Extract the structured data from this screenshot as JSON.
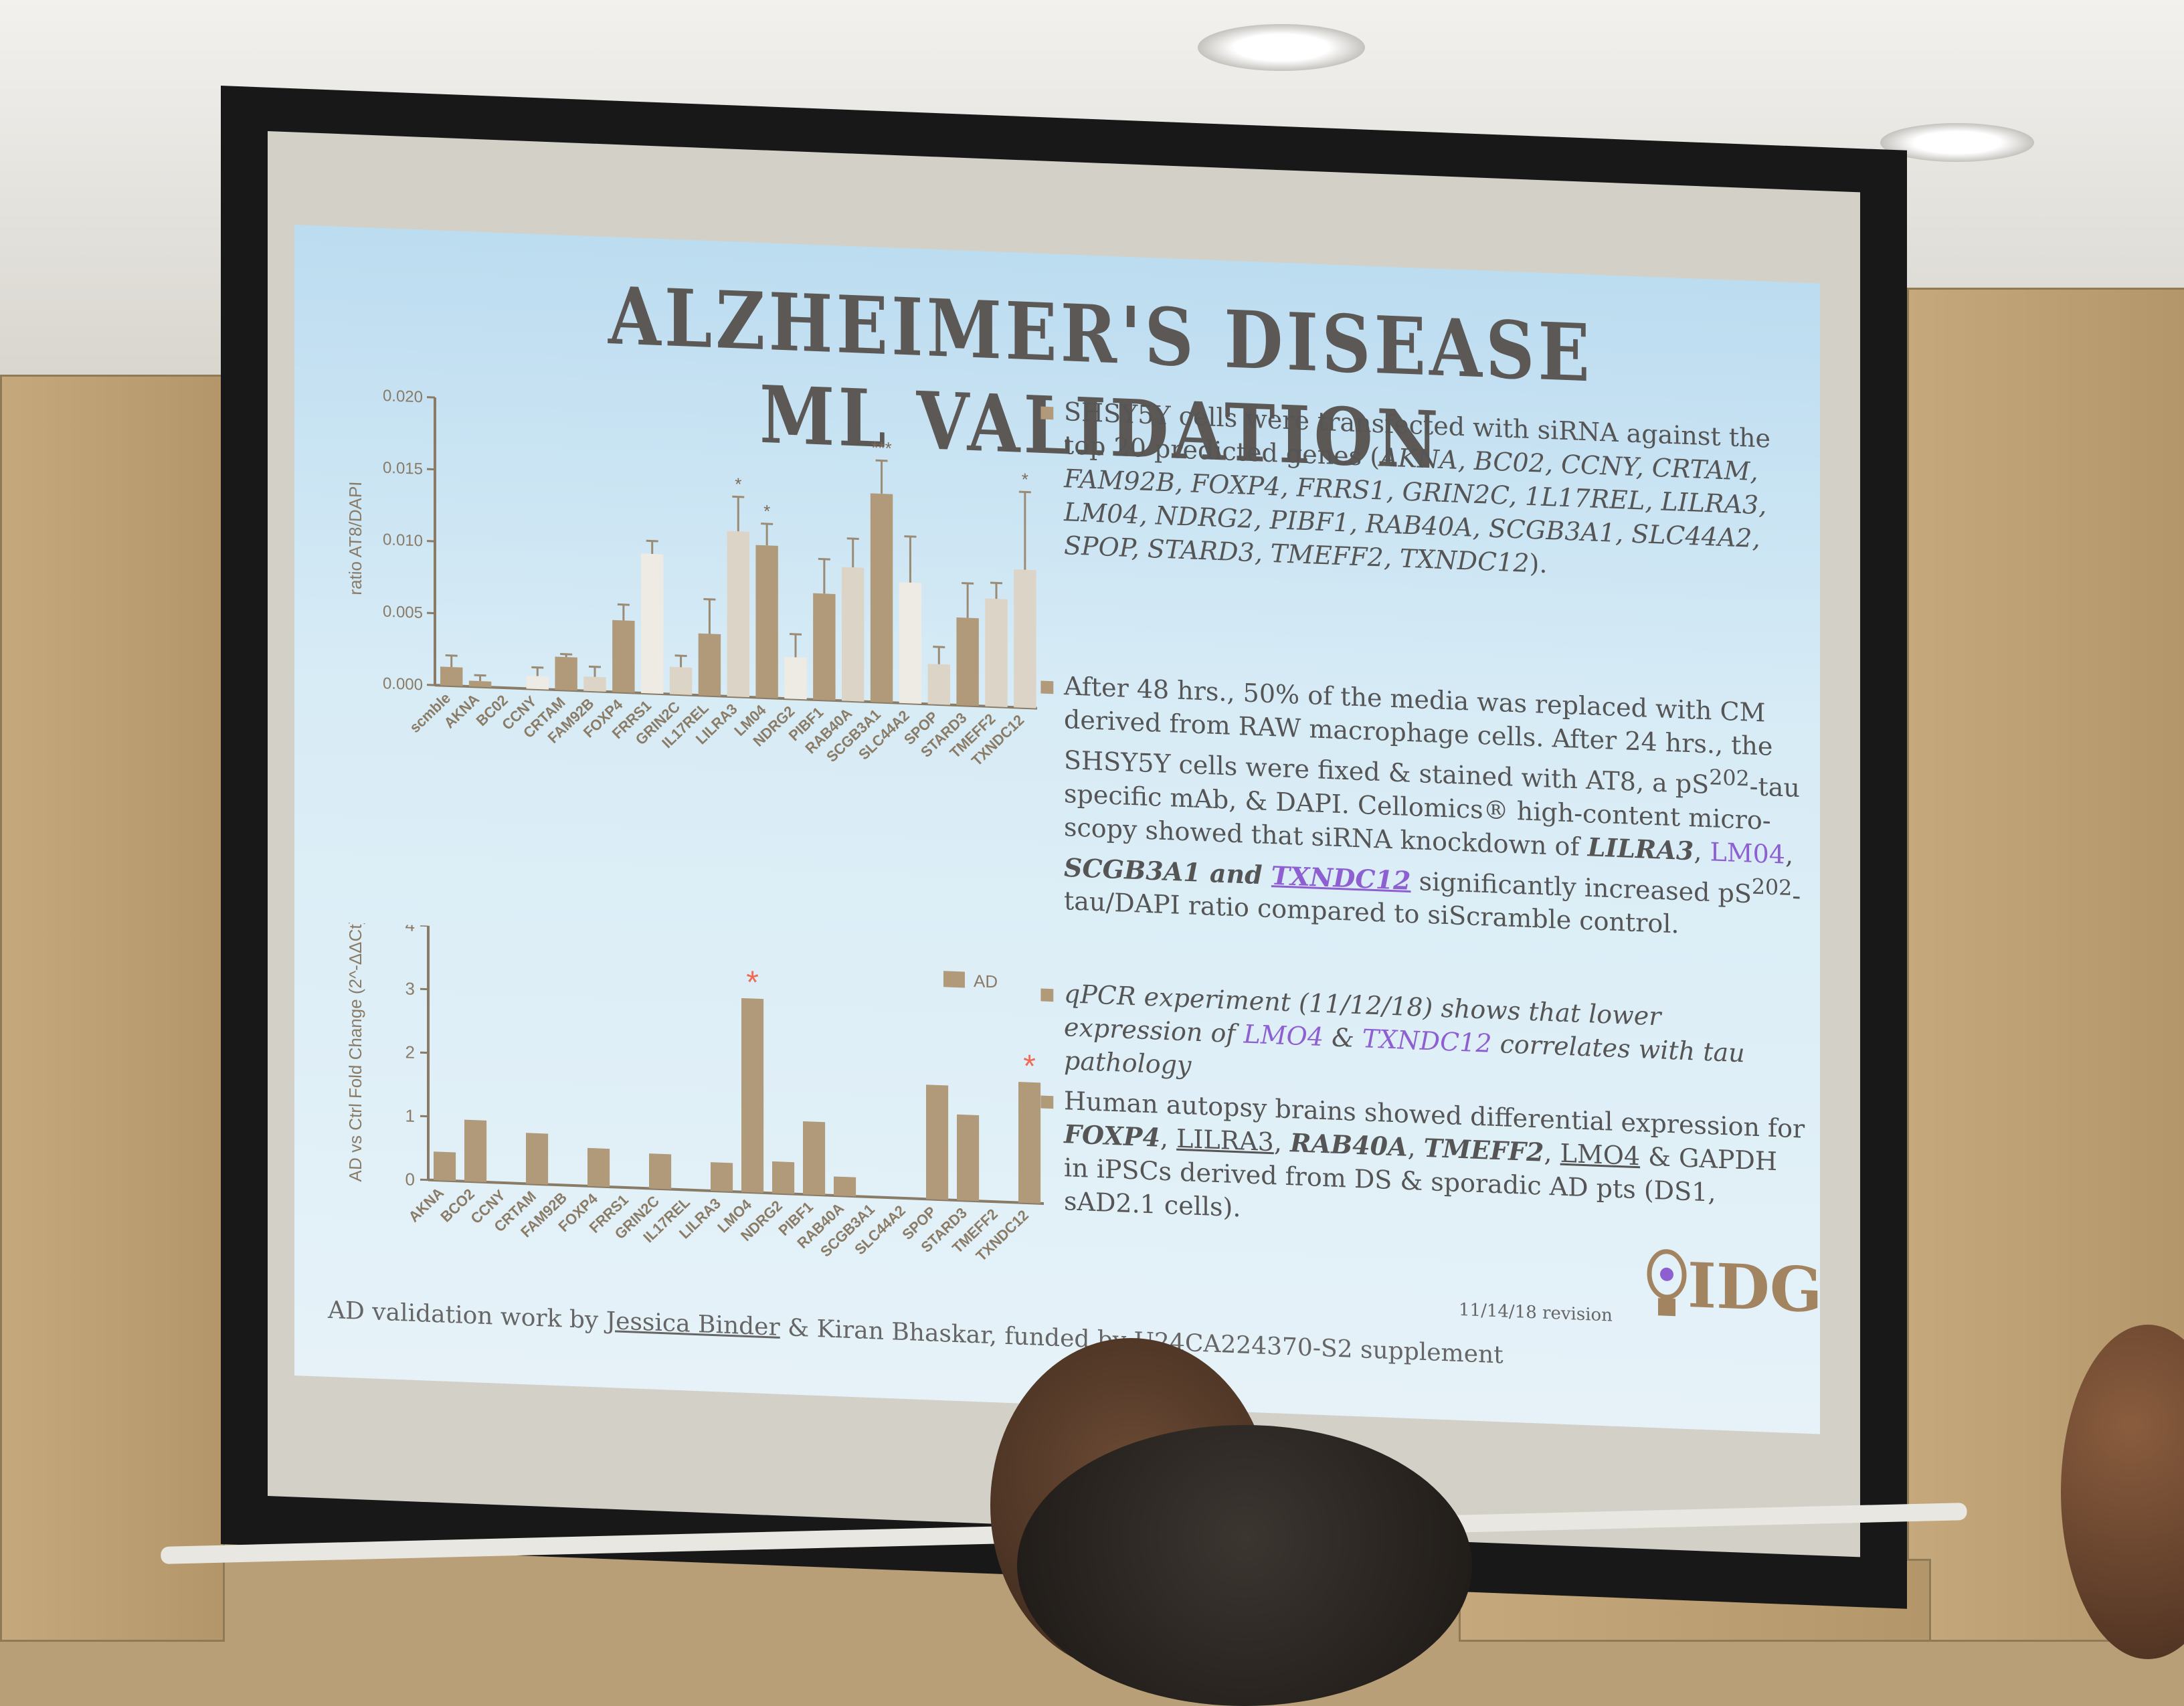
{
  "slide": {
    "title": "ALZHEIMER'S DISEASE ML VALIDATION",
    "bullets": [
      {
        "marker": "▪",
        "parts": [
          {
            "t": "SHSY5Y cells were transfected with siRNA against the top 20 predicted genes ("
          },
          {
            "t": "AKNA, BC02, CCNY, CRTAM, FAM92B, FOXP4, FRRS1, GRIN2C, 1L17REL, LILRA3, LM04, NDRG2, PIBF1, RAB40A, SCGB3A1, SLC44A2, SPOP, STARD3, TMEFF2, TXNDC12",
            "s": "i"
          },
          {
            "t": ")."
          }
        ]
      },
      {
        "marker": "▪",
        "parts": [
          {
            "t": "After 48 hrs., 50% of the media was replaced with CM derived from RAW macrophage cells. After 24 hrs., the SHSY5Y cells were fixed & stained with AT8, a pS"
          },
          {
            "t": "202",
            "s": "sup"
          },
          {
            "t": "-tau specific mAb, & DAPI.  Cellomics® high-content micro-scopy showed that siRNA knockdown of "
          },
          {
            "t": "LILRA3",
            "s": "b i"
          },
          {
            "t": ", "
          },
          {
            "t": "LM04",
            "s": "purple"
          },
          {
            "t": ", "
          },
          {
            "t": "SCGB3A1 and ",
            "s": "b i"
          },
          {
            "t": "TXNDC12",
            "s": "b i u purple"
          },
          {
            "t": " significantly increased pS"
          },
          {
            "t": "202",
            "s": "sup"
          },
          {
            "t": "-tau/DAPI ratio compared to siScramble control."
          }
        ]
      },
      {
        "marker": "▪",
        "parts": [
          {
            "t": "qPCR experiment (11/12/18) shows that lower expression of ",
            "s": "i"
          },
          {
            "t": "LMO4",
            "s": "i purple"
          },
          {
            "t": " & ",
            "s": "i"
          },
          {
            "t": "TXNDC12",
            "s": "i purple"
          },
          {
            "t": " correlates with tau pathology",
            "s": "i"
          }
        ]
      },
      {
        "marker": "▪",
        "parts": [
          {
            "t": "Human autopsy brains showed differential expression for "
          },
          {
            "t": "FOXP4",
            "s": "b i"
          },
          {
            "t": ", "
          },
          {
            "t": "LILRA3",
            "s": "u"
          },
          {
            "t": ", "
          },
          {
            "t": "RAB40A",
            "s": "b i"
          },
          {
            "t": ", "
          },
          {
            "t": "TMEFF2",
            "s": "b i"
          },
          {
            "t": ", "
          },
          {
            "t": "LMO4",
            "s": "u"
          },
          {
            "t": " & GAPDH in iPSCs derived from DS & sporadic AD pts (DS1, sAD2.1 cells)."
          }
        ]
      }
    ],
    "revision": "11/14/18 revision",
    "logo_text": "IDG",
    "footer": {
      "prefix": "AD validation work by ",
      "author1": "Jessica Binder",
      "suffix": " & Kiran Bhaskar, funded by U24CA224370-S2 supplement"
    }
  },
  "colors": {
    "bar_dark": "#b19a7a",
    "bar_light": "#ddd4c8",
    "bar_pale": "#eeeae4",
    "asterisk": "#f06a55",
    "axis": "#8a7b66"
  },
  "chart_data": [
    {
      "type": "bar",
      "title": "",
      "ylabel": "ratio AT8/DAPI",
      "ylim": [
        0,
        0.02
      ],
      "yticks": [
        "0.000",
        "0.005",
        "0.010",
        "0.015",
        "0.020"
      ],
      "categories": [
        "scmble",
        "AKNA",
        "BC02",
        "CCNY",
        "CRTAM",
        "FAM92B",
        "FOXP4",
        "FRRS1",
        "GRIN2C",
        "IL17REL",
        "LILRA3",
        "LM04",
        "NDRG2",
        "PIBF1",
        "RAB40A",
        "SCGB3A1",
        "SLC44A2",
        "SPOP",
        "STARD3",
        "TMEFF2",
        "TXNDC12"
      ],
      "values": [
        0.0013,
        0.0004,
        0.0,
        0.0009,
        0.0023,
        0.001,
        0.005,
        0.0097,
        0.0019,
        0.0043,
        0.0115,
        0.0106,
        0.0029,
        0.0074,
        0.0093,
        0.0145,
        0.0084,
        0.0028,
        0.0061,
        0.0075,
        0.0096
      ],
      "errors": [
        0.0008,
        0.0004,
        0.0,
        0.0006,
        0.0002,
        0.0007,
        0.0011,
        0.0009,
        0.0008,
        0.0024,
        0.0024,
        0.0015,
        0.0016,
        0.0024,
        0.002,
        0.0023,
        0.0032,
        0.0012,
        0.0024,
        0.0011,
        0.0054
      ],
      "shade": [
        "dark",
        "dark",
        "dark",
        "pale",
        "dark",
        "light",
        "dark",
        "pale",
        "light",
        "dark",
        "light",
        "dark",
        "pale",
        "dark",
        "light",
        "dark",
        "pale",
        "light",
        "dark",
        "light",
        "light"
      ],
      "significance": [
        "",
        "",
        "",
        "",
        "",
        "",
        "",
        "",
        "",
        "",
        "*",
        "*",
        "",
        "",
        "",
        "***",
        "",
        "",
        "",
        "",
        "*"
      ]
    },
    {
      "type": "bar",
      "ylabel": "AD vs Ctrl Fold Change (2^-ΔΔCt)",
      "ylim": [
        0,
        4
      ],
      "yticks": [
        "0",
        "1",
        "2",
        "3",
        "4"
      ],
      "legend": [
        {
          "label": "AD",
          "position": "top-right"
        }
      ],
      "categories": [
        "AKNA",
        "BCO2",
        "CCNY",
        "CRTAM",
        "FAM92B",
        "FOXP4",
        "FRRS1",
        "GRIN2C",
        "IL17REL",
        "LILRA3",
        "LMO4",
        "NDRG2",
        "PIBF1",
        "RAB40A",
        "SCGB3A1",
        "SLC44A2",
        "SPOP",
        "STARD3",
        "TMEFF2",
        "TXNDC12"
      ],
      "values": [
        0.45,
        0.97,
        0,
        0.8,
        0,
        0.6,
        0,
        0.55,
        0,
        0.45,
        3.05,
        0.5,
        1.15,
        0.3,
        0,
        0,
        1.8,
        1.35,
        0,
        1.9
      ],
      "significance": [
        "",
        "",
        "",
        "",
        "",
        "",
        "",
        "",
        "",
        "",
        "*",
        "",
        "",
        "",
        "",
        "",
        "",
        "",
        "",
        "*"
      ]
    }
  ]
}
